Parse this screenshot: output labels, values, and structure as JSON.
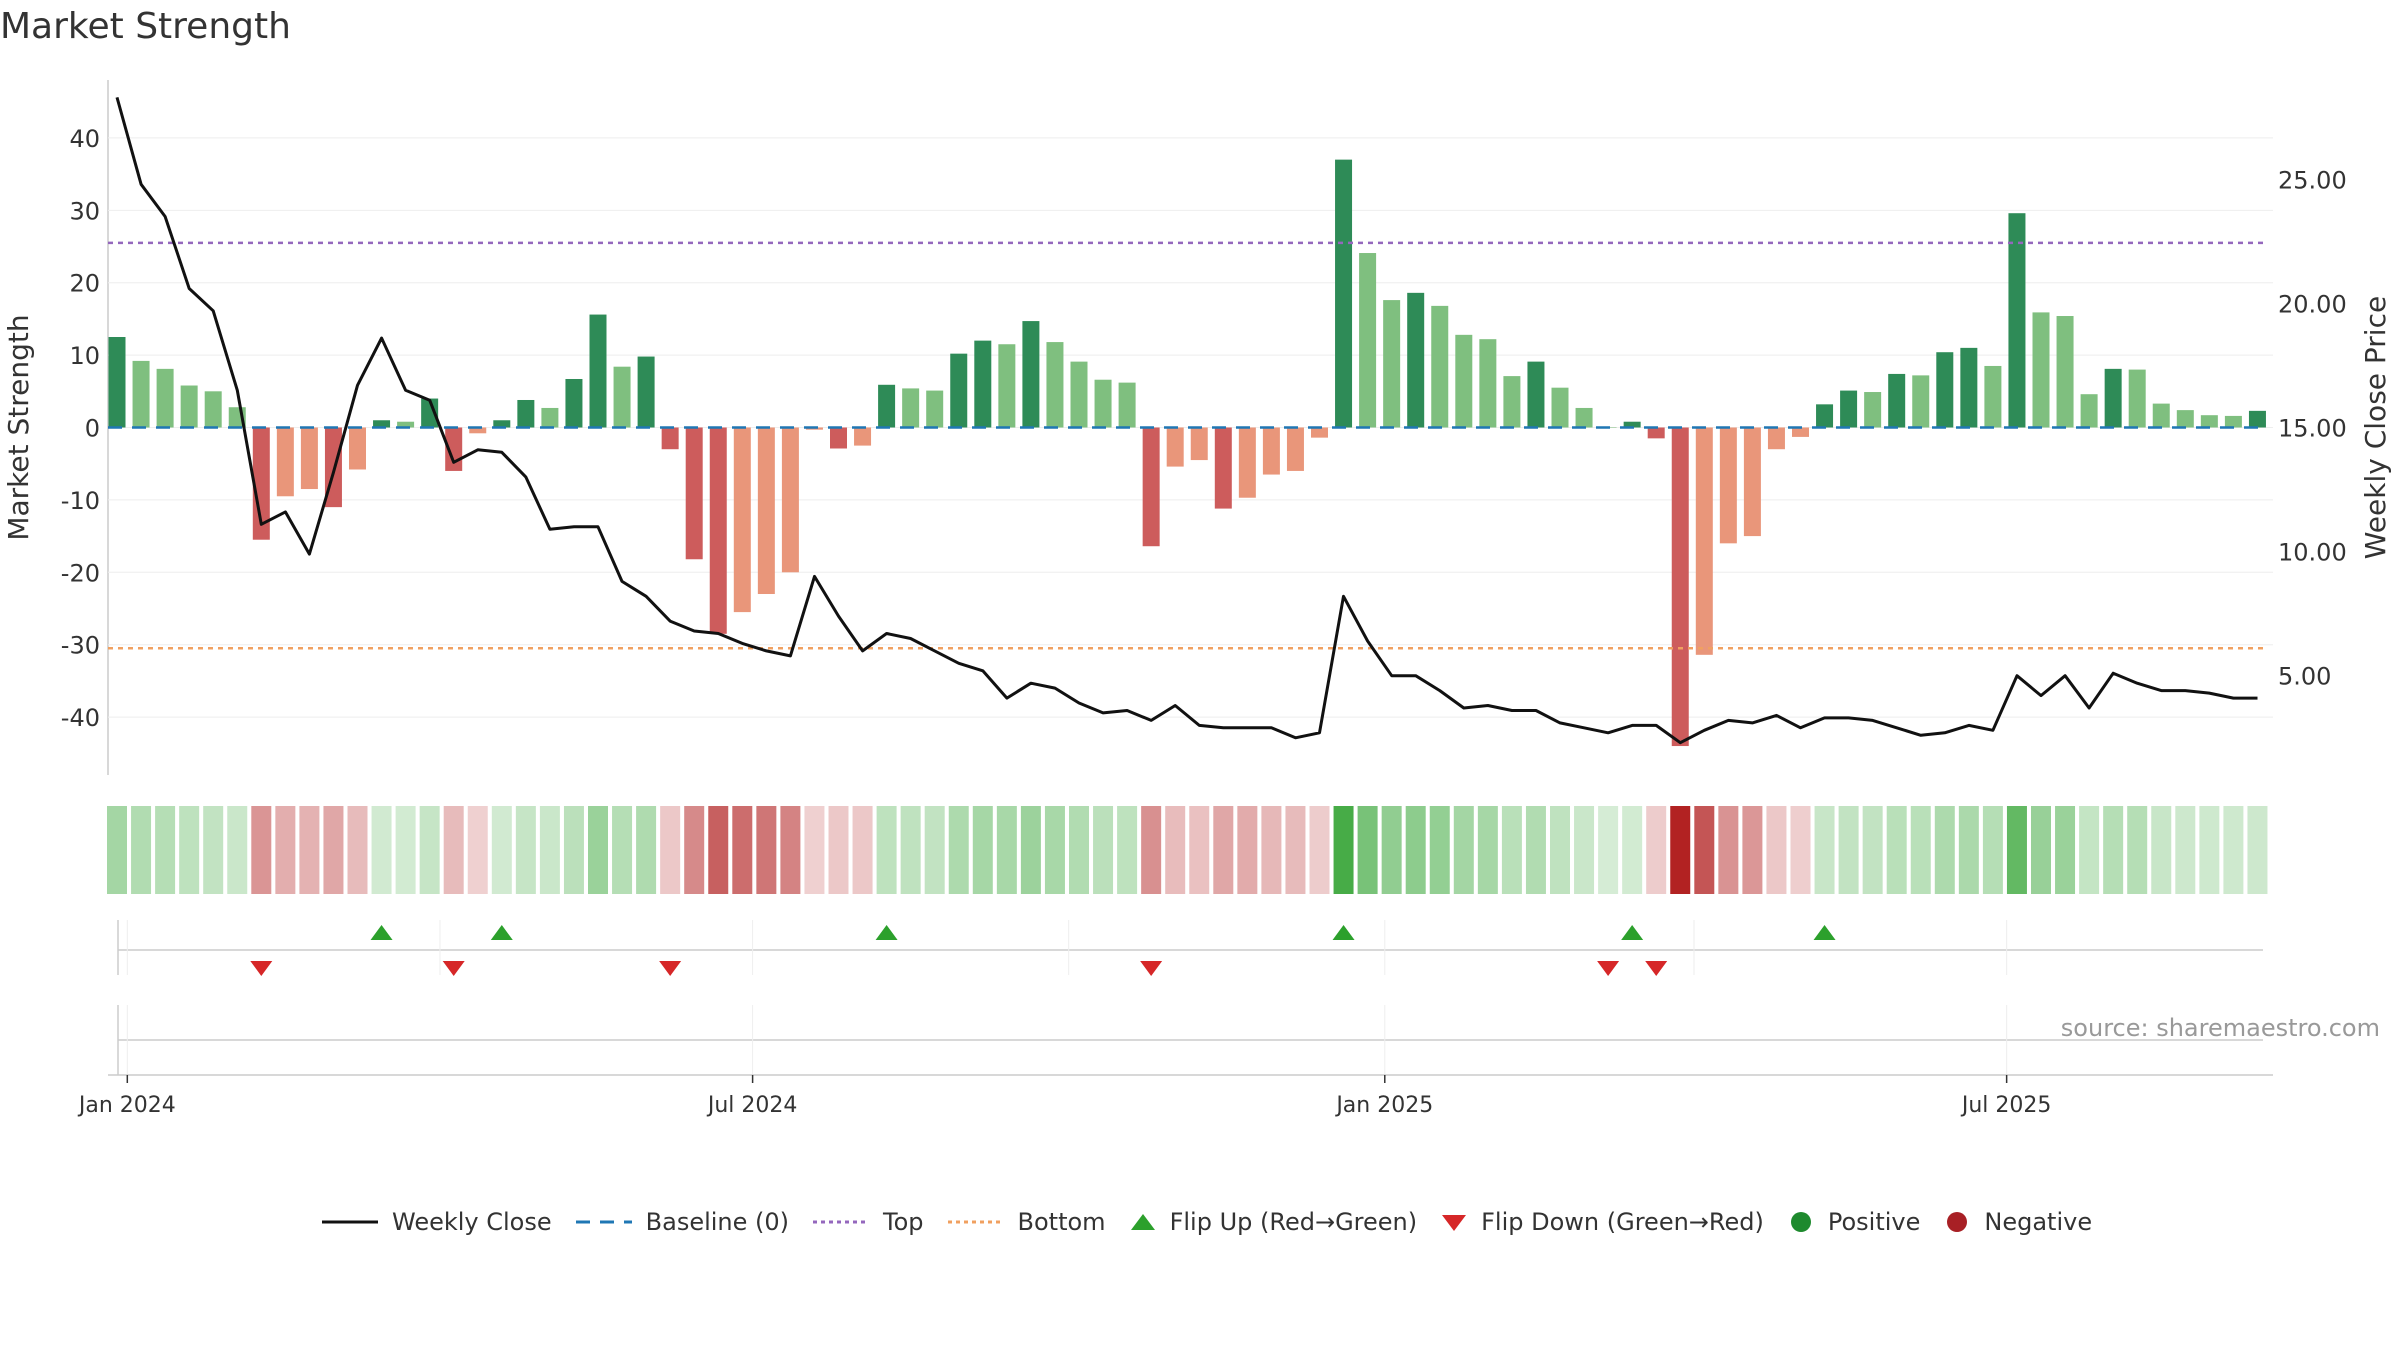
{
  "chart_data": {
    "type": "bar",
    "title": "Market Strength",
    "ylabel": "Market Strength",
    "y2label": "Weekly Close Price",
    "ylim": [
      -48,
      48
    ],
    "y2lim": [
      1.0,
      29.0
    ],
    "yticks": [
      40,
      30,
      20,
      10,
      0,
      -10,
      -20,
      -30,
      -40
    ],
    "y2ticks": [
      "25.00",
      "20.00",
      "15.00",
      "10.00",
      "5.00"
    ],
    "y2tick_values": [
      25,
      20,
      15,
      10,
      5
    ],
    "xticks": [
      {
        "label": "Jan 2024",
        "date": "2024-01-01"
      },
      {
        "label": "Jul 2024",
        "date": "2024-07-01"
      },
      {
        "label": "Jan 2025",
        "date": "2025-01-01"
      },
      {
        "label": "Jul 2025",
        "date": "2025-07-01"
      }
    ],
    "start_date": "2023-12-29",
    "top_level": 25.5,
    "bottom_level": -30.5,
    "values": [
      12.5,
      9.2,
      8.1,
      5.8,
      5,
      2.8,
      -15.5,
      -9.5,
      -8.5,
      -11,
      -5.8,
      1,
      0.8,
      4,
      -6,
      -0.8,
      1,
      3.8,
      2.7,
      6.7,
      15.6,
      8.4,
      9.8,
      -3,
      -18.2,
      -28.5,
      -25.5,
      -23,
      -20,
      -0.3,
      -2.9,
      -2.5,
      5.9,
      5.4,
      5.1,
      10.2,
      12,
      11.5,
      14.7,
      11.8,
      9.1,
      6.6,
      6.2,
      -16.4,
      -5.4,
      -4.5,
      -11.2,
      -9.7,
      -6.5,
      -6,
      -1.4,
      37,
      24.1,
      17.6,
      18.6,
      16.8,
      12.8,
      12.2,
      7.1,
      9.1,
      5.5,
      2.7,
      0,
      0.8,
      -1.5,
      -44,
      -31.4,
      -16,
      -15,
      -3,
      -1.3,
      3.2,
      5.1,
      4.9,
      7.4,
      7.2,
      10.4,
      11,
      8.5,
      29.6,
      15.9,
      15.4,
      4.6,
      8.1,
      8,
      3.3,
      2.4,
      1.7,
      1.6,
      2.3
    ],
    "price_values": [
      28.3,
      24.8,
      23.5,
      20.6,
      19.7,
      16.5,
      11.1,
      11.6,
      9.9,
      13.2,
      16.7,
      18.6,
      16.5,
      16.1,
      13.6,
      14.1,
      14.0,
      13.0,
      10.9,
      11.0,
      11.0,
      8.8,
      8.2,
      7.2,
      6.8,
      6.7,
      6.3,
      6.0,
      5.8,
      9.0,
      7.4,
      6.0,
      6.7,
      6.5,
      6.0,
      5.5,
      5.2,
      4.1,
      4.7,
      4.5,
      3.9,
      3.5,
      3.6,
      3.2,
      3.8,
      3.0,
      2.9,
      2.9,
      2.9,
      2.5,
      2.7,
      8.2,
      6.4,
      5.0,
      5.0,
      4.4,
      3.7,
      3.8,
      3.6,
      3.6,
      3.1,
      2.9,
      2.7,
      3.0,
      3.0,
      2.3,
      2.8,
      3.2,
      3.1,
      3.4,
      2.9,
      3.3,
      3.3,
      3.2,
      2.9,
      2.6,
      2.7,
      3.0,
      2.8,
      5.0,
      4.2,
      5.0,
      3.7,
      5.1,
      4.7,
      4.4,
      4.4,
      4.3,
      4.1,
      4.1
    ],
    "flip_up": [
      11,
      16,
      32,
      51,
      63,
      71
    ],
    "flip_down": [
      6,
      14,
      23,
      43,
      62,
      64
    ],
    "legend": [
      {
        "label": "Weekly Close",
        "kind": "line",
        "color": "#111111"
      },
      {
        "label": "Baseline (0)",
        "kind": "dash",
        "color": "#1f77b4"
      },
      {
        "label": "Top",
        "kind": "dot",
        "color": "#9467bd"
      },
      {
        "label": "Bottom",
        "kind": "dot",
        "color": "#f0a060"
      },
      {
        "label": "Flip Up (Red→Green)",
        "kind": "tri-up",
        "color": "#2ca02c"
      },
      {
        "label": "Flip Down (Green→Red)",
        "kind": "tri-down",
        "color": "#d62728"
      },
      {
        "label": "Positive",
        "kind": "circle",
        "color": "#1e8a2e"
      },
      {
        "label": "Negative",
        "kind": "circle",
        "color": "#a82025"
      }
    ],
    "colors": {
      "strong_positive": "#2e8b57",
      "weak_positive": "#7fbf7f",
      "strong_negative": "#cd5c5c",
      "weak_negative": "#e9967a",
      "price_line": "#111111",
      "baseline": "#1f77b4",
      "top": "#9467bd",
      "bottom": "#f0a060"
    }
  },
  "source": "source: sharemaestro.com"
}
